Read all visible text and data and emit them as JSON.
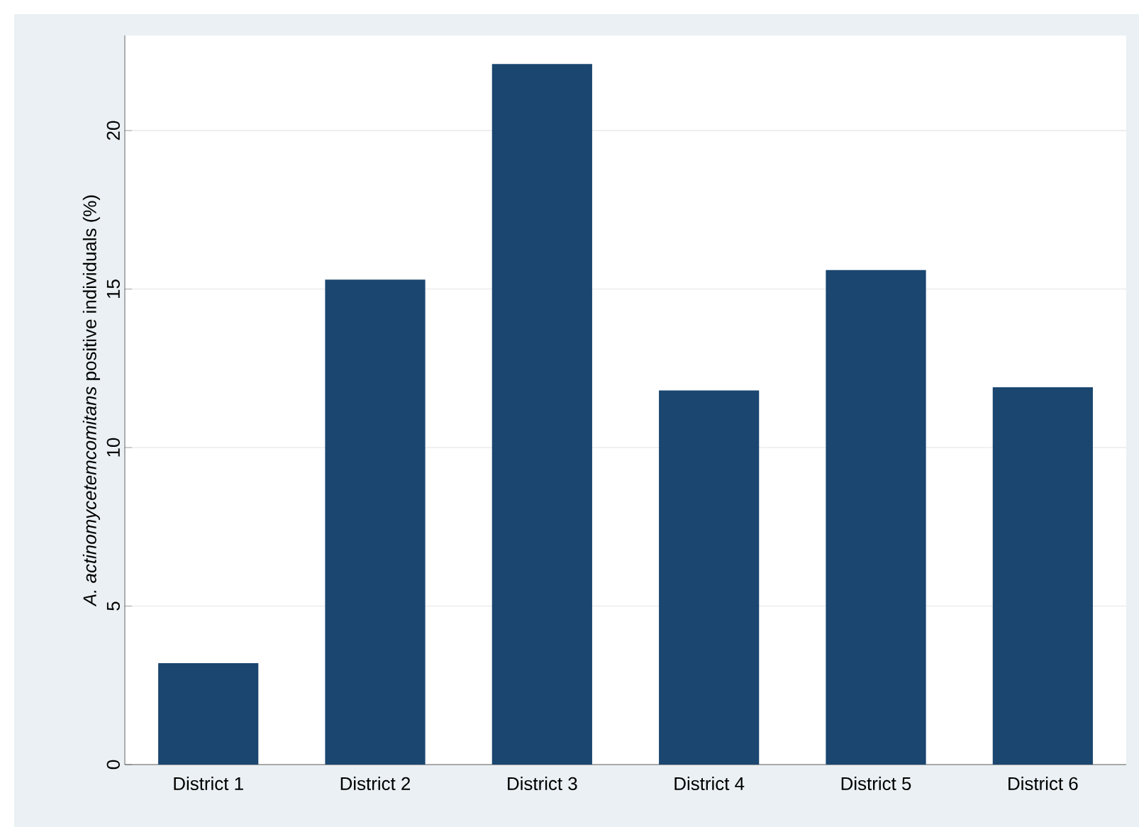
{
  "chart_data": {
    "type": "bar",
    "ylabel": "*A. actinomycetemcomitans* positive individuals (%)",
    "categories": [
      "District 1",
      "District 2",
      "District 3",
      "District 4",
      "District 5",
      "District 6"
    ],
    "values": [
      3.2,
      15.3,
      22.1,
      11.8,
      15.6,
      11.9
    ],
    "color": "#1a4670",
    "ylim": [
      0,
      23
    ],
    "yticks": [
      0,
      5,
      10,
      15,
      20
    ],
    "grid": "y"
  }
}
